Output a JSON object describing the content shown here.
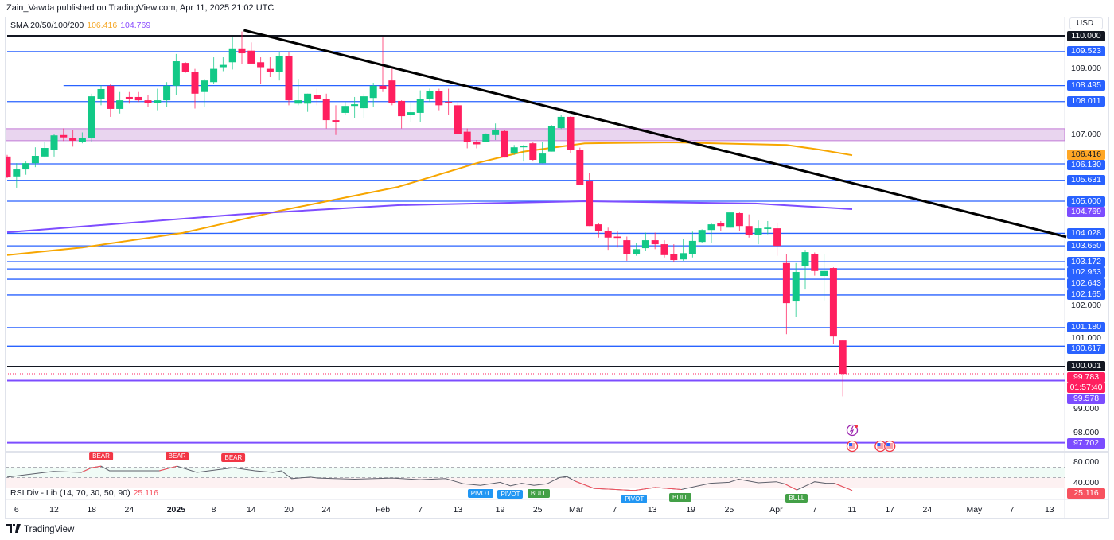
{
  "header": {
    "published": "Zain_Vawda published on TradingView.com, Apr 11, 2025 21:02 UTC"
  },
  "legend": {
    "name": "SMA 20/50/100/200",
    "sma_a": "106.416",
    "sma_b": "104.769"
  },
  "currency": "USD",
  "rsi_legend": {
    "name": "RSI Div - Lib (14, 70, 30, 50, 90)",
    "value": "25.116"
  },
  "footer": {
    "brand": "TradingView",
    "mark": "17"
  },
  "colors": {
    "up": "#12c987",
    "down": "#ff1f5f",
    "level": "#2962ff",
    "black": "#131722",
    "purple": "#7c4dff",
    "sma_orange": "#f7a600",
    "sma_purple": "#7e4dff",
    "zone": "#e9d5ef",
    "rsi_red": "#f7525f"
  },
  "chart_data": {
    "type": "candlestick",
    "symbol_currency": "USD",
    "candles": [
      [
        106.35,
        106.4,
        105.7,
        105.72
      ],
      [
        105.75,
        106.15,
        105.41,
        105.96
      ],
      [
        105.96,
        106.2,
        105.8,
        106.15
      ],
      [
        106.15,
        106.63,
        106.03,
        106.37
      ],
      [
        106.35,
        106.78,
        106.32,
        106.61
      ],
      [
        106.56,
        107.03,
        106.35,
        106.99
      ],
      [
        107.0,
        107.2,
        106.82,
        106.93
      ],
      [
        106.92,
        107.15,
        106.65,
        106.83
      ],
      [
        106.78,
        107.08,
        106.75,
        106.92
      ],
      [
        106.92,
        108.25,
        106.8,
        108.17
      ],
      [
        108.08,
        108.5,
        107.9,
        108.39
      ],
      [
        108.49,
        108.55,
        107.55,
        107.79
      ],
      [
        107.79,
        108.3,
        107.65,
        108.05
      ],
      [
        108.15,
        108.3,
        107.95,
        108.1
      ],
      [
        108.15,
        108.3,
        108.0,
        108.05
      ],
      [
        108.05,
        108.2,
        107.85,
        107.98
      ],
      [
        107.98,
        108.4,
        107.75,
        108.05
      ],
      [
        108.05,
        108.6,
        107.85,
        108.49
      ],
      [
        108.49,
        109.45,
        108.2,
        109.23
      ],
      [
        109.18,
        109.2,
        108.88,
        108.9
      ],
      [
        108.9,
        109.0,
        107.8,
        108.25
      ],
      [
        108.3,
        108.7,
        107.85,
        108.65
      ],
      [
        108.6,
        109.35,
        108.55,
        109.0
      ],
      [
        109.05,
        109.35,
        108.93,
        109.12
      ],
      [
        109.2,
        109.95,
        108.98,
        109.62
      ],
      [
        109.62,
        110.13,
        109.15,
        109.47
      ],
      [
        109.55,
        109.8,
        109.15,
        109.16
      ],
      [
        109.2,
        109.35,
        108.55,
        109.05
      ],
      [
        109.0,
        109.35,
        108.75,
        108.9
      ],
      [
        108.9,
        109.5,
        108.65,
        109.38
      ],
      [
        109.38,
        109.5,
        107.9,
        108.05
      ],
      [
        107.95,
        108.7,
        107.9,
        108.05
      ],
      [
        107.95,
        108.25,
        107.7,
        108.25
      ],
      [
        108.22,
        108.4,
        107.9,
        108.08
      ],
      [
        108.08,
        108.25,
        107.2,
        107.45
      ],
      [
        107.45,
        107.9,
        107.0,
        107.4
      ],
      [
        107.67,
        108.0,
        107.6,
        107.88
      ],
      [
        107.88,
        108.15,
        107.5,
        107.93
      ],
      [
        107.81,
        108.25,
        107.5,
        108.17
      ],
      [
        108.12,
        108.58,
        107.85,
        108.49
      ],
      [
        108.49,
        109.95,
        108.3,
        108.39
      ],
      [
        108.65,
        109.0,
        107.9,
        107.98
      ],
      [
        108.03,
        108.05,
        107.2,
        107.57
      ],
      [
        107.6,
        108.0,
        107.4,
        107.69
      ],
      [
        107.67,
        108.35,
        107.4,
        108.08
      ],
      [
        108.08,
        108.4,
        108.0,
        108.32
      ],
      [
        108.32,
        108.4,
        107.75,
        107.9
      ],
      [
        108.0,
        108.4,
        107.6,
        107.98
      ],
      [
        107.9,
        108.0,
        107.04,
        107.04
      ],
      [
        107.1,
        107.2,
        106.6,
        106.78
      ],
      [
        106.78,
        106.85,
        106.6,
        106.72
      ],
      [
        106.8,
        107.05,
        106.78,
        107.02
      ],
      [
        107.0,
        107.35,
        106.85,
        107.14
      ],
      [
        107.12,
        107.15,
        106.32,
        106.32
      ],
      [
        106.44,
        106.7,
        106.4,
        106.63
      ],
      [
        106.63,
        106.7,
        106.2,
        106.68
      ],
      [
        106.75,
        106.8,
        106.2,
        106.25
      ],
      [
        106.15,
        106.78,
        106.15,
        106.44
      ],
      [
        106.5,
        107.3,
        106.5,
        107.28
      ],
      [
        107.21,
        107.62,
        107.18,
        107.55
      ],
      [
        107.55,
        107.57,
        106.46,
        106.54
      ],
      [
        106.54,
        106.62,
        105.5,
        105.5
      ],
      [
        105.6,
        105.85,
        104.25,
        104.25
      ],
      [
        104.3,
        104.35,
        103.9,
        104.11
      ],
      [
        104.09,
        104.2,
        103.53,
        103.9
      ],
      [
        103.93,
        104.1,
        103.6,
        103.89
      ],
      [
        103.82,
        103.93,
        103.2,
        103.41
      ],
      [
        103.41,
        103.75,
        103.35,
        103.55
      ],
      [
        103.58,
        104.05,
        103.5,
        103.82
      ],
      [
        103.82,
        104.05,
        103.55,
        103.7
      ],
      [
        103.7,
        103.82,
        103.3,
        103.37
      ],
      [
        103.41,
        103.7,
        103.15,
        103.22
      ],
      [
        103.24,
        103.87,
        103.2,
        103.43
      ],
      [
        103.41,
        104.08,
        103.3,
        103.8
      ],
      [
        103.77,
        104.15,
        103.75,
        104.13
      ],
      [
        104.13,
        104.35,
        103.75,
        104.3
      ],
      [
        104.33,
        104.4,
        104.1,
        104.25
      ],
      [
        104.2,
        104.68,
        104.18,
        104.66
      ],
      [
        104.64,
        104.66,
        104.1,
        104.25
      ],
      [
        104.25,
        104.6,
        103.9,
        103.99
      ],
      [
        103.99,
        104.42,
        103.7,
        104.18
      ],
      [
        104.16,
        104.4,
        104.0,
        104.2
      ],
      [
        104.18,
        104.33,
        103.35,
        103.65
      ],
      [
        103.13,
        103.4,
        100.98,
        101.92
      ],
      [
        101.97,
        103.13,
        101.5,
        102.86
      ],
      [
        103.05,
        103.53,
        102.33,
        103.46
      ],
      [
        103.41,
        103.45,
        102.75,
        102.89
      ],
      [
        102.74,
        103.4,
        102.0,
        102.89
      ],
      [
        102.98,
        103.0,
        100.69,
        100.91
      ],
      [
        100.79,
        100.8,
        99.1,
        99.78
      ]
    ],
    "x_ticks": [
      {
        "i": 1,
        "label": "6"
      },
      {
        "i": 5,
        "label": "12"
      },
      {
        "i": 9,
        "label": "18"
      },
      {
        "i": 13,
        "label": "24"
      },
      {
        "i": 18,
        "label": "2025",
        "bold": true
      },
      {
        "i": 22,
        "label": "8"
      },
      {
        "i": 26,
        "label": "14"
      },
      {
        "i": 30,
        "label": "20"
      },
      {
        "i": 34,
        "label": "24"
      },
      {
        "i": 40,
        "label": "Feb"
      },
      {
        "i": 44,
        "label": "7"
      },
      {
        "i": 48,
        "label": "13"
      },
      {
        "i": 52.5,
        "label": "19"
      },
      {
        "i": 56.5,
        "label": "25"
      },
      {
        "i": 60.6,
        "label": "Mar"
      },
      {
        "i": 64.7,
        "label": "7"
      },
      {
        "i": 68.7,
        "label": "13"
      },
      {
        "i": 72.8,
        "label": "19"
      },
      {
        "i": 76.9,
        "label": "25"
      },
      {
        "i": 81.9,
        "label": "Apr"
      },
      {
        "i": 86,
        "label": "7"
      },
      {
        "i": 90,
        "label": "11"
      },
      {
        "i": 94,
        "label": "17"
      },
      {
        "i": 98,
        "label": "24"
      },
      {
        "i": 103,
        "label": "May"
      },
      {
        "i": 107,
        "label": "7"
      },
      {
        "i": 111,
        "label": "13"
      }
    ],
    "y_ticks": [
      "109.000",
      "107.000",
      "102.000",
      "101.000",
      "99.000",
      "98.000"
    ],
    "y_range": [
      97.4,
      110.3
    ],
    "levels": [
      {
        "price": 110.0,
        "label": "110.000",
        "kind": "black",
        "start": 0
      },
      {
        "price": 109.523,
        "label": "109.523",
        "kind": "level",
        "start": 0
      },
      {
        "price": 108.495,
        "label": "108.495",
        "kind": "level",
        "start": 6
      },
      {
        "price": 108.011,
        "label": "108.011",
        "kind": "level",
        "start": 0
      },
      {
        "price": 106.13,
        "label": "106.130",
        "kind": "level",
        "start": 0
      },
      {
        "price": 105.631,
        "label": "105.631",
        "kind": "level",
        "start": 0
      },
      {
        "price": 105.0,
        "label": "105.000",
        "kind": "level",
        "start": 0
      },
      {
        "price": 104.028,
        "label": "104.028",
        "kind": "level",
        "start": 0
      },
      {
        "price": 103.65,
        "label": "103.650",
        "kind": "level",
        "start": 0
      },
      {
        "price": 103.172,
        "label": "103.172",
        "kind": "level",
        "start": 0
      },
      {
        "price": 102.953,
        "label": "102.953",
        "kind": "level",
        "start": 0
      },
      {
        "price": 102.643,
        "label": "102.643",
        "kind": "level",
        "start": 0
      },
      {
        "price": 102.165,
        "label": "102.165",
        "kind": "level",
        "start": 0
      },
      {
        "price": 101.18,
        "label": "101.180",
        "kind": "level",
        "start": 0
      },
      {
        "price": 100.617,
        "label": "100.617",
        "kind": "level",
        "start": 0
      },
      {
        "price": 100.001,
        "label": "100.001",
        "kind": "black",
        "start": 0
      },
      {
        "price": 99.578,
        "label": "99.578",
        "kind": "purple",
        "start": 0
      },
      {
        "price": 97.702,
        "label": "97.702",
        "kind": "purple",
        "start": 0
      }
    ],
    "zone": {
      "from": 106.83,
      "to": 107.19
    },
    "trendline": [
      [
        25.2,
        110.17
      ],
      [
        112.8,
        103.92
      ]
    ],
    "sma_orange": {
      "label": "106.416",
      "value": 106.416,
      "points": [
        [
          0,
          103.37
        ],
        [
          8,
          103.6
        ],
        [
          18.7,
          104.04
        ],
        [
          29,
          104.71
        ],
        [
          41.6,
          105.43
        ],
        [
          50,
          106.15
        ],
        [
          55,
          106.5
        ],
        [
          61.5,
          106.75
        ],
        [
          71,
          106.78
        ],
        [
          83,
          106.7
        ],
        [
          86.5,
          106.56
        ],
        [
          90,
          106.39
        ]
      ]
    },
    "sma_purple": {
      "label": "104.769",
      "value": 104.769,
      "points": [
        [
          0,
          104.06
        ],
        [
          24.7,
          104.6
        ],
        [
          41.6,
          104.88
        ],
        [
          61.5,
          105.0
        ],
        [
          79.7,
          104.93
        ],
        [
          90,
          104.76
        ]
      ]
    },
    "last_price": {
      "value": 99.783,
      "label": "99.783",
      "countdown": "01:57:40"
    },
    "rsi": {
      "value": "25.116",
      "ticks": [
        "80.000",
        "40.000"
      ],
      "bands": [
        70,
        50,
        30
      ],
      "points": [
        [
          0,
          51
        ],
        [
          4.9,
          62
        ],
        [
          7.9,
          60
        ],
        [
          9,
          69
        ],
        [
          10,
          72
        ],
        [
          10.9,
          63
        ],
        [
          16.2,
          63
        ],
        [
          18.1,
          72
        ],
        [
          20.2,
          60
        ],
        [
          24.1,
          69
        ],
        [
          26.4,
          63
        ],
        [
          28.3,
          60
        ],
        [
          29.2,
          63
        ],
        [
          30.3,
          48
        ],
        [
          32.3,
          51
        ],
        [
          33.1,
          49
        ],
        [
          37,
          47
        ],
        [
          41,
          49
        ],
        [
          44,
          46
        ],
        [
          46.7,
          48
        ],
        [
          48.6,
          38
        ],
        [
          50.4,
          35
        ],
        [
          52.5,
          41
        ],
        [
          53.6,
          34
        ],
        [
          54.8,
          39
        ],
        [
          56.1,
          35
        ],
        [
          57.5,
          38
        ],
        [
          58.8,
          50
        ],
        [
          59.6,
          52
        ],
        [
          60.5,
          43
        ],
        [
          62.5,
          29
        ],
        [
          66.8,
          25
        ],
        [
          69,
          31
        ],
        [
          71.8,
          27
        ],
        [
          73.6,
          34
        ],
        [
          74.9,
          39
        ],
        [
          76.9,
          41
        ],
        [
          77.9,
          47
        ],
        [
          80,
          40
        ],
        [
          81.9,
          42
        ],
        [
          82.8,
          38
        ],
        [
          84.1,
          26
        ],
        [
          86,
          42
        ],
        [
          87.2,
          39
        ],
        [
          88.1,
          39
        ],
        [
          90,
          25.1
        ]
      ],
      "red_segments": [
        [
          7.9,
          10
        ],
        [
          16.2,
          18.1
        ],
        [
          22,
          24.1
        ],
        [
          60.5,
          72.5
        ],
        [
          82.8,
          84.1
        ],
        [
          88.1,
          90
        ]
      ],
      "signals": [
        {
          "i": 10,
          "label": "BEAR",
          "type": "bear"
        },
        {
          "i": 18.1,
          "label": "BEAR",
          "type": "bear"
        },
        {
          "i": 24.1,
          "label": "BEAR",
          "type": "bear"
        },
        {
          "i": 50.4,
          "label": "PIVOT",
          "type": "pivot"
        },
        {
          "i": 53.6,
          "label": "PIVOT",
          "type": "pivot"
        },
        {
          "i": 56.6,
          "label": "BULL",
          "type": "bull"
        },
        {
          "i": 66.8,
          "label": "PIVOT",
          "type": "pivot"
        },
        {
          "i": 71.7,
          "label": "BULL",
          "type": "bull"
        },
        {
          "i": 84.1,
          "label": "BULL",
          "type": "bull"
        }
      ]
    },
    "events": [
      {
        "i": 90,
        "type": "lightning"
      },
      {
        "i": 90,
        "type": "us-flag"
      },
      {
        "i": 93,
        "type": "us-flag"
      },
      {
        "i": 94,
        "type": "us-flag"
      }
    ]
  }
}
